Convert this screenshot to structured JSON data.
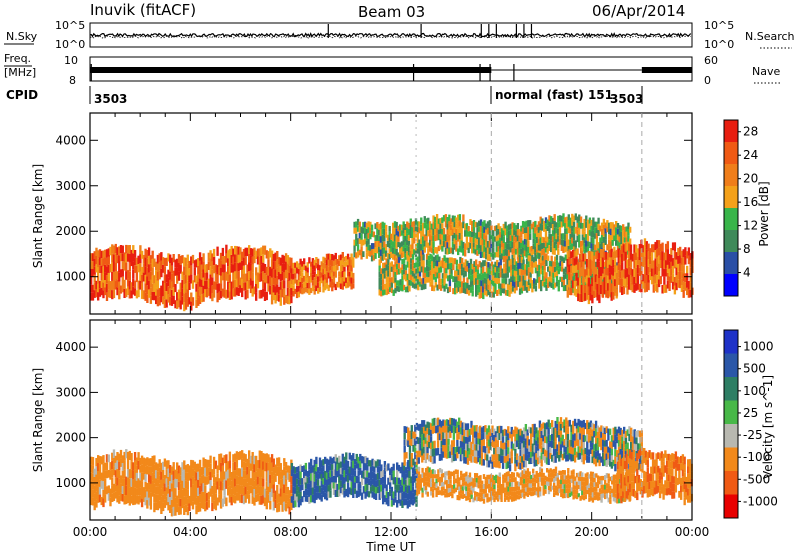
{
  "header": {
    "station": "Inuvik (fitACF)",
    "beam": "Beam 03",
    "date": "06/Apr/2014"
  },
  "status_panels": {
    "nsky_label": "N.Sky",
    "nsky_ticks": [
      "10^5",
      "10^0"
    ],
    "nsearch_label": "N.Search",
    "nsearch_ticks": [
      "10^5",
      "10^0"
    ],
    "freq_label_1": "Freq.",
    "freq_label_2": "[MHz]",
    "freq_ticks": [
      "10",
      "8"
    ],
    "nave_label": "Nave",
    "nave_ticks": [
      "60",
      "0"
    ],
    "cpid_label": "CPID",
    "cpid_segments": [
      {
        "label": "3503",
        "start_hour": 0.0
      },
      {
        "label": "normal (fast) 151",
        "start_hour": 16.0
      },
      {
        "label": "3503",
        "start_hour": 22.0
      }
    ],
    "mode_change_hours": [
      16.0,
      22.0
    ]
  },
  "chart_data": [
    {
      "type": "heatmap",
      "title": "",
      "xlabel": "Time UT",
      "ylabel": "Slant Range [km]",
      "x_range_hours": [
        0,
        24
      ],
      "x_tick_labels": [
        "00:00",
        "04:00",
        "08:00",
        "12:00",
        "16:00",
        "20:00",
        "00:00"
      ],
      "y_range_km": [
        180,
        4600
      ],
      "y_tick_labels": [
        "1000",
        "2000",
        "3000",
        "4000"
      ],
      "colorbar": {
        "label": "Power [dB]",
        "ticks": [
          "4",
          "8",
          "12",
          "16",
          "20",
          "24",
          "28"
        ],
        "range": [
          0,
          30
        ]
      },
      "echo_regions": [
        {
          "desc": "near-range strong band",
          "t": [
            0.0,
            8.0
          ],
          "r": [
            450,
            1550
          ],
          "value": 24
        },
        {
          "desc": "band through midday",
          "t": [
            8.0,
            10.5
          ],
          "r": [
            650,
            1400
          ],
          "value": 22
        },
        {
          "desc": "upper arc",
          "t": [
            10.5,
            21.5
          ],
          "r": [
            1450,
            2250
          ],
          "value": 14
        },
        {
          "desc": "lower arc",
          "t": [
            11.5,
            21.0
          ],
          "r": [
            650,
            1400
          ],
          "value": 14
        },
        {
          "desc": "evening band",
          "t": [
            19.0,
            24.0
          ],
          "r": [
            600,
            1650
          ],
          "value": 24
        }
      ]
    },
    {
      "type": "heatmap",
      "title": "",
      "xlabel": "Time UT",
      "ylabel": "Slant Range [km]",
      "x_range_hours": [
        0,
        24
      ],
      "x_tick_labels": [
        "00:00",
        "04:00",
        "08:00",
        "12:00",
        "16:00",
        "20:00",
        "00:00"
      ],
      "y_range_km": [
        180,
        4600
      ],
      "y_tick_labels": [
        "1000",
        "2000",
        "3000",
        "4000"
      ],
      "colorbar": {
        "label": "Velocity [m s^-1]",
        "ticks": [
          "1000",
          "500",
          "100",
          "25",
          "-25",
          "-100",
          "-500",
          "-1000"
        ]
      },
      "echo_regions": [
        {
          "desc": "near-range band",
          "t": [
            0.0,
            8.0
          ],
          "r": [
            450,
            1550
          ],
          "value": -300
        },
        {
          "desc": "midday band",
          "t": [
            8.0,
            13.0
          ],
          "r": [
            600,
            1500
          ],
          "value": 200
        },
        {
          "desc": "ground scatter arc",
          "t": [
            12.5,
            22.0
          ],
          "r": [
            1400,
            2300
          ],
          "value": 0
        },
        {
          "desc": "lower afternoon band",
          "t": [
            13.0,
            21.5
          ],
          "r": [
            650,
            1250
          ],
          "value": -250
        },
        {
          "desc": "evening band",
          "t": [
            21.0,
            24.0
          ],
          "r": [
            600,
            1600
          ],
          "value": -450
        }
      ]
    }
  ],
  "colors": {
    "power_scale": [
      "#0000ff",
      "#2a4fa6",
      "#3f8a5a",
      "#39b54a",
      "#f4a11a",
      "#f07e1a",
      "#f05a14",
      "#e81e10"
    ],
    "velocity_scale": [
      "#e80000",
      "#f05a14",
      "#f2891a",
      "#b8b8b0",
      "#48b848",
      "#2e7e64",
      "#2b57a8",
      "#1e32c8"
    ]
  }
}
